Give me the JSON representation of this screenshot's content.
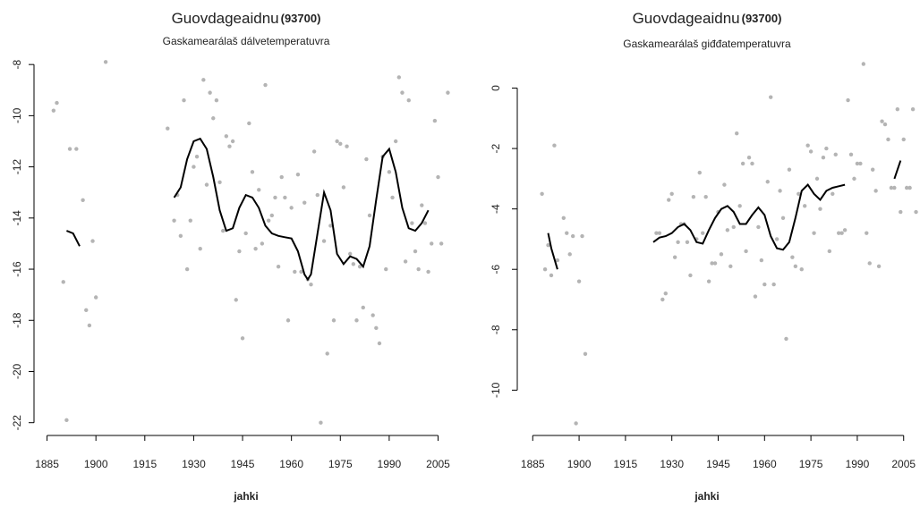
{
  "chart_data": [
    {
      "type": "scatter",
      "title": "Guovdageaidnu",
      "station": "(93700)",
      "subtitle": "Gaskamearálaš dálvetemperatuvra",
      "x_label": "jahki",
      "xlim": [
        1881,
        2012
      ],
      "ylim": [
        -22.5,
        -7.4
      ],
      "xticks": [
        1885,
        1900,
        1915,
        1930,
        1945,
        1960,
        1975,
        1990,
        2005
      ],
      "yticks": [
        -22,
        -20,
        -18,
        -16,
        -14,
        -12,
        -10,
        -8
      ],
      "points": {
        "color": "#b4b4b4",
        "x": [
          1887,
          1888,
          1890,
          1891,
          1892,
          1894,
          1896,
          1897,
          1898,
          1899,
          1900,
          1903,
          1922,
          1924,
          1925,
          1926,
          1927,
          1928,
          1929,
          1930,
          1931,
          1932,
          1933,
          1934,
          1935,
          1936,
          1937,
          1938,
          1939,
          1940,
          1941,
          1942,
          1943,
          1944,
          1945,
          1946,
          1947,
          1948,
          1949,
          1950,
          1951,
          1952,
          1953,
          1954,
          1955,
          1956,
          1957,
          1958,
          1959,
          1960,
          1961,
          1962,
          1963,
          1964,
          1965,
          1966,
          1967,
          1968,
          1969,
          1970,
          1971,
          1972,
          1973,
          1974,
          1975,
          1976,
          1977,
          1978,
          1979,
          1980,
          1981,
          1982,
          1983,
          1984,
          1985,
          1986,
          1987,
          1988,
          1989,
          1990,
          1991,
          1992,
          1993,
          1994,
          1995,
          1996,
          1997,
          1998,
          1999,
          2000,
          2001,
          2002,
          2003,
          2004,
          2005,
          2006,
          2008
        ],
        "y": [
          -9.8,
          -9.5,
          -16.5,
          -21.9,
          -11.3,
          -11.3,
          -13.3,
          -17.6,
          -18.2,
          -14.9,
          -17.1,
          -7.9,
          -10.5,
          -14.1,
          -13.1,
          -14.7,
          -9.4,
          -16.0,
          -14.1,
          -12.0,
          -11.6,
          -15.2,
          -8.6,
          -12.7,
          -9.1,
          -10.1,
          -9.4,
          -12.6,
          -14.5,
          -10.8,
          -11.2,
          -11.0,
          -17.2,
          -15.3,
          -18.7,
          -14.6,
          -10.3,
          -12.2,
          -15.2,
          -12.9,
          -15.0,
          -8.8,
          -14.1,
          -13.9,
          -13.2,
          -15.9,
          -12.4,
          -13.2,
          -18.0,
          -13.6,
          -16.1,
          -12.3,
          -16.1,
          -13.4,
          -16.4,
          -16.6,
          -11.4,
          -13.1,
          -22.0,
          -14.9,
          -19.3,
          -14.3,
          -18.0,
          -11.0,
          -11.1,
          -12.8,
          -11.2,
          -15.4,
          -15.8,
          -18.0,
          -15.9,
          -17.5,
          -11.7,
          -13.9,
          -17.8,
          -18.3,
          -18.9,
          -11.6,
          -16.0,
          -12.2,
          -13.2,
          -11.0,
          -8.5,
          -9.1,
          -15.7,
          -9.4,
          -14.2,
          -15.3,
          -16.0,
          -13.5,
          -14.2,
          -16.1,
          -15.0,
          -10.2,
          -12.4,
          -15.0,
          -9.1
        ]
      },
      "smooth": {
        "color": "#000000",
        "x": [
          1891,
          1893,
          1895,
          null,
          1924,
          1926,
          1928,
          1930,
          1932,
          1934,
          1936,
          1938,
          1940,
          1942,
          1944,
          1946,
          1948,
          1950,
          1952,
          1954,
          1956,
          1958,
          1960,
          1962,
          1964,
          1965,
          1966,
          1968,
          1970,
          1972,
          1974,
          1976,
          1978,
          1980,
          1982,
          1984,
          1986,
          1988,
          1990,
          1992,
          1994,
          1996,
          1998,
          2000,
          2002
        ],
        "y": [
          -14.5,
          -14.6,
          -15.1,
          null,
          -13.2,
          -12.8,
          -11.7,
          -11.0,
          -10.9,
          -11.3,
          -12.4,
          -13.7,
          -14.5,
          -14.4,
          -13.6,
          -13.1,
          -13.2,
          -13.6,
          -14.3,
          -14.6,
          -14.7,
          -14.75,
          -14.8,
          -15.3,
          -16.2,
          -16.4,
          -16.2,
          -14.6,
          -13.0,
          -13.7,
          -15.4,
          -15.8,
          -15.5,
          -15.6,
          -15.9,
          -15.1,
          -13.3,
          -11.6,
          -11.3,
          -12.2,
          -13.6,
          -14.4,
          -14.5,
          -14.2,
          -13.7
        ]
      }
    },
    {
      "type": "scatter",
      "title": "Guovdageaidnu",
      "station": "(93700)",
      "subtitle": "Gaskamearálaš giđđatemperatuvra",
      "x_label": "jahki",
      "xlim": [
        1880,
        2010
      ],
      "ylim": [
        -11.5,
        1.2
      ],
      "xticks": [
        1885,
        1900,
        1915,
        1930,
        1945,
        1960,
        1975,
        1990,
        2005
      ],
      "yticks": [
        -10,
        -8,
        -6,
        -4,
        -2,
        0
      ],
      "points": {
        "color": "#b4b4b4",
        "x": [
          1888,
          1889,
          1890,
          1891,
          1892,
          1893,
          1895,
          1896,
          1897,
          1898,
          1899,
          1900,
          1901,
          1902,
          1925,
          1926,
          1927,
          1928,
          1929,
          1930,
          1931,
          1932,
          1933,
          1934,
          1935,
          1936,
          1937,
          1938,
          1939,
          1940,
          1941,
          1942,
          1943,
          1944,
          1945,
          1946,
          1947,
          1948,
          1949,
          1950,
          1951,
          1952,
          1953,
          1954,
          1955,
          1956,
          1957,
          1958,
          1959,
          1960,
          1961,
          1962,
          1963,
          1964,
          1965,
          1966,
          1967,
          1968,
          1969,
          1970,
          1971,
          1972,
          1973,
          1974,
          1975,
          1976,
          1977,
          1978,
          1979,
          1980,
          1981,
          1982,
          1983,
          1984,
          1985,
          1986,
          1987,
          1988,
          1989,
          1990,
          1991,
          1992,
          1993,
          1994,
          1995,
          1996,
          1997,
          1998,
          1999,
          2000,
          2001,
          2002,
          2003,
          2004,
          2005,
          2006,
          2007,
          2008,
          2009
        ],
        "y": [
          -3.5,
          -6.0,
          -5.2,
          -6.2,
          -1.9,
          -5.7,
          -4.3,
          -4.8,
          -5.5,
          -4.9,
          -11.1,
          -6.4,
          -4.9,
          -8.8,
          -4.8,
          -4.8,
          -7.0,
          -6.8,
          -3.7,
          -3.5,
          -5.6,
          -5.1,
          -4.5,
          -4.5,
          -5.1,
          -6.2,
          -3.6,
          -5.0,
          -2.8,
          -4.8,
          -3.6,
          -6.4,
          -5.8,
          -5.8,
          -4.1,
          -5.5,
          -3.2,
          -4.7,
          -5.9,
          -4.6,
          -1.5,
          -3.9,
          -2.5,
          -5.4,
          -2.3,
          -2.5,
          -6.9,
          -4.6,
          -5.7,
          -6.5,
          -3.1,
          -0.3,
          -6.5,
          -5.0,
          -3.4,
          -4.3,
          -8.3,
          -2.7,
          -5.6,
          -5.9,
          -3.5,
          -6.0,
          -3.9,
          -1.9,
          -2.1,
          -4.8,
          -3.0,
          -4.0,
          -2.3,
          -2.0,
          -5.4,
          -3.5,
          -2.2,
          -4.8,
          -4.8,
          -4.7,
          -0.4,
          -2.2,
          -3.0,
          -2.5,
          -2.5,
          0.8,
          -4.8,
          -5.8,
          -2.7,
          -3.4,
          -5.9,
          -1.1,
          -1.2,
          -1.7,
          -3.3,
          -3.3,
          -0.7,
          -4.1,
          -1.7,
          -3.3,
          -3.3,
          -0.7,
          -4.1
        ]
      },
      "smooth": {
        "color": "#000000",
        "x": [
          1890,
          1891,
          1893,
          null,
          1924,
          1926,
          1928,
          1930,
          1932,
          1934,
          1936,
          1938,
          1940,
          1942,
          1944,
          1946,
          1948,
          1950,
          1952,
          1954,
          1956,
          1958,
          1960,
          1962,
          1964,
          1966,
          1968,
          1970,
          1972,
          1974,
          1976,
          1978,
          1980,
          1982,
          1984,
          1986,
          null,
          2002,
          2004
        ],
        "y": [
          -4.8,
          -5.3,
          -6.0,
          null,
          -5.1,
          -4.95,
          -4.9,
          -4.8,
          -4.6,
          -4.5,
          -4.7,
          -5.1,
          -5.15,
          -4.7,
          -4.3,
          -4.0,
          -3.9,
          -4.1,
          -4.5,
          -4.5,
          -4.2,
          -3.95,
          -4.2,
          -4.9,
          -5.3,
          -5.35,
          -5.1,
          -4.3,
          -3.4,
          -3.2,
          -3.5,
          -3.7,
          -3.4,
          -3.3,
          -3.25,
          -3.2,
          null,
          -3.0,
          -2.4
        ]
      }
    }
  ]
}
